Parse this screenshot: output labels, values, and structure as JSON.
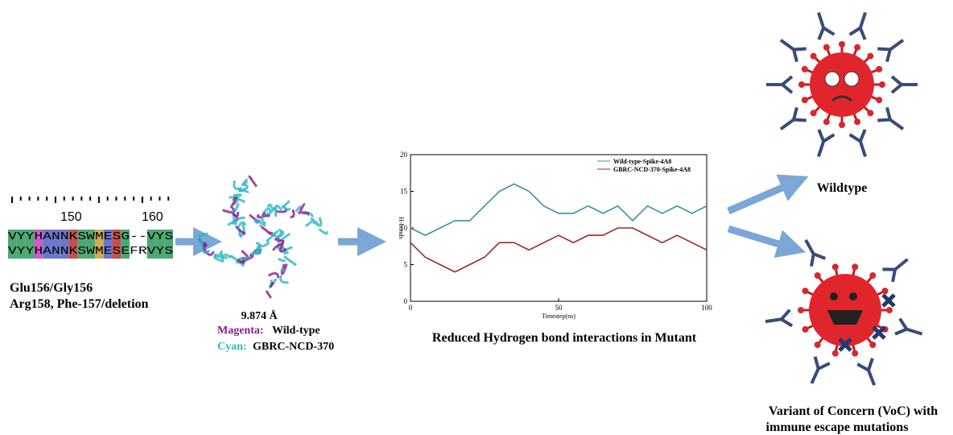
{
  "alignment": {
    "ruler": [
      "150",
      "160"
    ],
    "sequences": [
      "VYYHANNKSWMESG--VYS",
      "VYYHANNKSWMESEFRVYS"
    ],
    "mutations": [
      "Glu156/Gly156",
      "Arg158, Phe-157/deletion"
    ]
  },
  "structure": {
    "distance": "9.874 Å",
    "legend": [
      {
        "key": "Magenta:",
        "label": "Wild-type"
      },
      {
        "key": "Cyan:",
        "label": "GBRC-NCD-370"
      }
    ]
  },
  "chart": {
    "type": "line",
    "xlabel": "Timestep(ns)",
    "ylabel": "H-bonds",
    "x": [
      0,
      5,
      10,
      15,
      20,
      25,
      30,
      35,
      40,
      45,
      50,
      55,
      60,
      65,
      70,
      75,
      80,
      85,
      90,
      95,
      100
    ],
    "series": [
      {
        "name": "Wild-type-Spike-4A8",
        "color": "#3a8fa0",
        "values": [
          10,
          9,
          10,
          11,
          11,
          13,
          15,
          16,
          15,
          13,
          12,
          12,
          13,
          12,
          13,
          11,
          13,
          12,
          13,
          12,
          13
        ]
      },
      {
        "name": "GBRC-NCD-370-Spike-4A8",
        "color": "#a0262a",
        "values": [
          8,
          6,
          5,
          4,
          5,
          6,
          8,
          8,
          7,
          8,
          9,
          8,
          9,
          9,
          10,
          10,
          9,
          8,
          9,
          8,
          7
        ]
      }
    ],
    "xlim": [
      0,
      100
    ],
    "ylim": [
      0,
      20
    ],
    "xticks": [
      0,
      50,
      100
    ],
    "yticks": [
      0,
      5,
      10,
      15,
      20
    ],
    "caption": "Reduced Hydrogen bond interactions in Mutant"
  },
  "outcomes": {
    "wildtype": "Wildtype",
    "variant": [
      "Variant of Concern (VoC) with",
      "immune escape mutations"
    ]
  }
}
